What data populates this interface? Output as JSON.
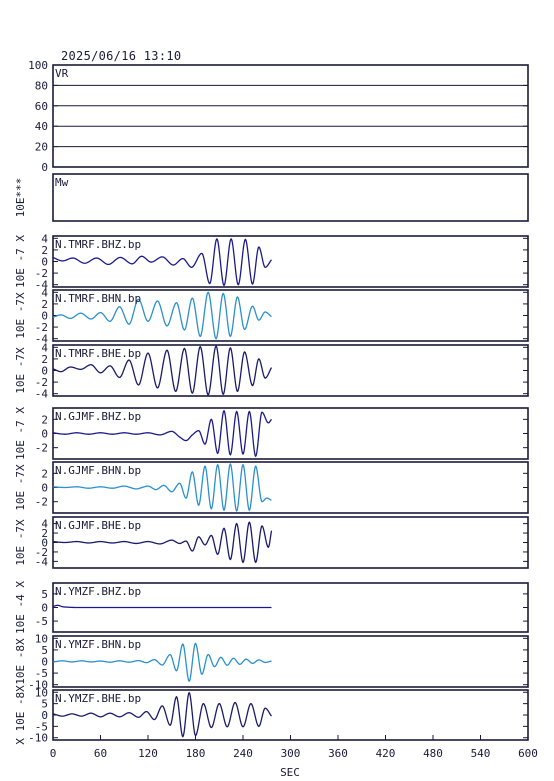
{
  "header": {
    "timestamp": "2025/06/16  13:10"
  },
  "chart_data": {
    "type": "line",
    "xlabel": "SEC",
    "xlim": [
      0,
      600
    ],
    "xticks": [
      0,
      60,
      120,
      180,
      240,
      300,
      360,
      420,
      480,
      540,
      600
    ],
    "panels": [
      {
        "id": "vr",
        "kind": "frame",
        "label": "VR",
        "ylim": [
          0,
          100
        ],
        "yticks": [
          0,
          20,
          40,
          60,
          80,
          100
        ],
        "grid": true,
        "ylabel": ""
      },
      {
        "id": "mw",
        "kind": "frame",
        "label": "Mw",
        "ylabel": "10E***",
        "yticks": []
      },
      {
        "id": "tmrf-bhz",
        "kind": "wave",
        "label": "N.TMRF.BHZ.bp",
        "ylabel": "10E -7 X",
        "ylim": [
          -4.4,
          4.4
        ],
        "yticks": [
          -4,
          -2,
          0,
          2,
          4
        ],
        "color": "#1a1a8c",
        "xend": 276,
        "nodes": [
          [
            0,
            0.7
          ],
          [
            12,
            0.1
          ],
          [
            25,
            0.6
          ],
          [
            40,
            -0.3
          ],
          [
            55,
            0.6
          ],
          [
            70,
            -0.5
          ],
          [
            85,
            0.7
          ],
          [
            100,
            -0.4
          ],
          [
            112,
            0.9
          ],
          [
            124,
            -0.1
          ],
          [
            138,
            0.8
          ],
          [
            152,
            -0.6
          ],
          [
            164,
            0.5
          ],
          [
            175,
            -1.0
          ],
          [
            188,
            1.4
          ],
          [
            198,
            -3.8
          ],
          [
            207,
            3.9
          ],
          [
            216,
            -4.1
          ],
          [
            225,
            3.9
          ],
          [
            234,
            -4.0
          ],
          [
            243,
            3.8
          ],
          [
            252,
            -3.9
          ],
          [
            260,
            2.5
          ],
          [
            268,
            -1.0
          ],
          [
            276,
            0.3
          ]
        ]
      },
      {
        "id": "tmrf-bhn",
        "kind": "wave",
        "label": "N.TMRF.BHN.bp",
        "ylabel": "10E -7X",
        "ylim": [
          -4.4,
          4.4
        ],
        "yticks": [
          -4,
          -2,
          0,
          2,
          4
        ],
        "color": "#2a90d0",
        "xend": 276,
        "nodes": [
          [
            0,
            -0.3
          ],
          [
            10,
            0.1
          ],
          [
            22,
            -0.5
          ],
          [
            35,
            0.4
          ],
          [
            48,
            -0.6
          ],
          [
            60,
            0.5
          ],
          [
            72,
            -1.0
          ],
          [
            84,
            1.5
          ],
          [
            96,
            -1.5
          ],
          [
            108,
            2.8
          ],
          [
            120,
            -1.0
          ],
          [
            132,
            2.5
          ],
          [
            144,
            -1.8
          ],
          [
            156,
            2.2
          ],
          [
            166,
            -2.5
          ],
          [
            176,
            3.0
          ],
          [
            186,
            -3.6
          ],
          [
            196,
            4.0
          ],
          [
            206,
            -4.0
          ],
          [
            215,
            3.8
          ],
          [
            224,
            -3.6
          ],
          [
            233,
            3.2
          ],
          [
            242,
            -2.4
          ],
          [
            252,
            1.6
          ],
          [
            260,
            -0.8
          ],
          [
            268,
            0.6
          ],
          [
            276,
            -0.2
          ]
        ]
      },
      {
        "id": "tmrf-bhe",
        "kind": "wave",
        "label": "N.TMRF.BHE.bp",
        "ylabel": "10E -7X",
        "ylim": [
          -4.4,
          4.4
        ],
        "yticks": [
          -4,
          -2,
          0,
          2,
          4
        ],
        "color": "#1a1a6c",
        "xend": 276,
        "nodes": [
          [
            0,
            0.3
          ],
          [
            10,
            -0.2
          ],
          [
            22,
            0.6
          ],
          [
            35,
            0.2
          ],
          [
            48,
            1.0
          ],
          [
            60,
            -0.4
          ],
          [
            72,
            0.8
          ],
          [
            84,
            -1.2
          ],
          [
            96,
            1.8
          ],
          [
            108,
            -2.5
          ],
          [
            120,
            3.0
          ],
          [
            132,
            -3.0
          ],
          [
            144,
            3.5
          ],
          [
            155,
            -3.6
          ],
          [
            166,
            3.8
          ],
          [
            176,
            -3.9
          ],
          [
            186,
            4.1
          ],
          [
            196,
            -4.2
          ],
          [
            206,
            4.2
          ],
          [
            215,
            -4.1
          ],
          [
            224,
            3.9
          ],
          [
            233,
            -3.6
          ],
          [
            242,
            3.2
          ],
          [
            252,
            -2.6
          ],
          [
            260,
            2.0
          ],
          [
            268,
            -1.3
          ],
          [
            276,
            0.5
          ]
        ]
      },
      {
        "id": "gjmf-bhz",
        "kind": "wave",
        "label": "N.GJMF.BHZ.bp",
        "ylabel": "10E -7 X",
        "ylim": [
          -3.6,
          3.6
        ],
        "yticks": [
          -2,
          0,
          2
        ],
        "color": "#1a1a8c",
        "xend": 276,
        "nodes": [
          [
            0,
            0.1
          ],
          [
            15,
            -0.1
          ],
          [
            30,
            0.1
          ],
          [
            45,
            -0.1
          ],
          [
            60,
            0.1
          ],
          [
            75,
            -0.1
          ],
          [
            90,
            0.1
          ],
          [
            105,
            -0.1
          ],
          [
            120,
            0.1
          ],
          [
            135,
            -0.2
          ],
          [
            150,
            0.3
          ],
          [
            160,
            -0.5
          ],
          [
            168,
            -1.0
          ],
          [
            176,
            -0.2
          ],
          [
            184,
            0.4
          ],
          [
            192,
            -1.5
          ],
          [
            200,
            2.0
          ],
          [
            208,
            -2.8
          ],
          [
            216,
            3.2
          ],
          [
            224,
            -3.0
          ],
          [
            232,
            3.1
          ],
          [
            240,
            -2.9
          ],
          [
            248,
            3.1
          ],
          [
            256,
            -3.2
          ],
          [
            264,
            3.0
          ],
          [
            272,
            1.5
          ],
          [
            276,
            2.0
          ]
        ]
      },
      {
        "id": "gjmf-bhn",
        "kind": "wave",
        "label": "N.GJMF.BHN.bp",
        "ylabel": "10E -7X",
        "ylim": [
          -3.6,
          3.6
        ],
        "yticks": [
          -2,
          0,
          2
        ],
        "color": "#2a90d0",
        "xend": 276,
        "nodes": [
          [
            0,
            0.1
          ],
          [
            15,
            0.0
          ],
          [
            30,
            0.1
          ],
          [
            45,
            -0.1
          ],
          [
            60,
            0.1
          ],
          [
            75,
            -0.1
          ],
          [
            90,
            0.2
          ],
          [
            105,
            -0.2
          ],
          [
            120,
            0.2
          ],
          [
            130,
            -0.3
          ],
          [
            140,
            0.3
          ],
          [
            150,
            -0.6
          ],
          [
            160,
            0.6
          ],
          [
            168,
            -1.5
          ],
          [
            176,
            2.2
          ],
          [
            184,
            -2.5
          ],
          [
            192,
            3.0
          ],
          [
            200,
            -3.0
          ],
          [
            208,
            3.2
          ],
          [
            216,
            -3.2
          ],
          [
            224,
            3.3
          ],
          [
            232,
            -3.3
          ],
          [
            240,
            3.2
          ],
          [
            248,
            -3.2
          ],
          [
            256,
            3.0
          ],
          [
            264,
            -2.0
          ],
          [
            270,
            -1.5
          ],
          [
            276,
            -1.8
          ]
        ]
      },
      {
        "id": "gjmf-bhe",
        "kind": "wave",
        "label": "N.GJMF.BHE.bp",
        "ylabel": "10E -7X",
        "ylim": [
          -5.4,
          5.4
        ],
        "yticks": [
          -4,
          -2,
          0,
          2,
          4
        ],
        "color": "#1a1a6c",
        "xend": 276,
        "nodes": [
          [
            0,
            0.2
          ],
          [
            15,
            0.0
          ],
          [
            30,
            0.2
          ],
          [
            45,
            -0.1
          ],
          [
            60,
            0.2
          ],
          [
            75,
            -0.1
          ],
          [
            90,
            0.2
          ],
          [
            105,
            -0.2
          ],
          [
            120,
            0.2
          ],
          [
            135,
            -0.3
          ],
          [
            150,
            0.5
          ],
          [
            160,
            -0.2
          ],
          [
            168,
            0.3
          ],
          [
            176,
            -1.8
          ],
          [
            184,
            1.2
          ],
          [
            192,
            -0.5
          ],
          [
            200,
            1.5
          ],
          [
            208,
            -2.5
          ],
          [
            216,
            3.0
          ],
          [
            224,
            -3.6
          ],
          [
            232,
            4.0
          ],
          [
            240,
            -4.2
          ],
          [
            248,
            4.3
          ],
          [
            256,
            -4.2
          ],
          [
            264,
            3.5
          ],
          [
            272,
            -1.0
          ],
          [
            276,
            2.5
          ]
        ]
      },
      {
        "id": "ymzf-bhz",
        "kind": "wave",
        "label": "N.YMZF.BHZ.bp",
        "ylabel": "10E -4 X",
        "ylim": [
          -9,
          9
        ],
        "yticks": [
          -5,
          0,
          5
        ],
        "color": "#1a1a8c",
        "xend": 276,
        "nodes": [
          [
            0,
            0.4
          ],
          [
            6,
            0.8
          ],
          [
            12,
            0.3
          ],
          [
            20,
            0.1
          ],
          [
            30,
            0.0
          ],
          [
            40,
            0.0
          ],
          [
            60,
            0.0
          ],
          [
            276,
            0.0
          ]
        ]
      },
      {
        "id": "ymzf-bhn",
        "kind": "wave",
        "label": "N.YMZF.BHN.bp",
        "ylabel": "10E -8X",
        "ylim": [
          -11,
          11
        ],
        "yticks": [
          -10,
          -5,
          0,
          5,
          10
        ],
        "color": "#2a90d0",
        "xend": 276,
        "nodes": [
          [
            0,
            -0.2
          ],
          [
            12,
            0.3
          ],
          [
            24,
            -0.2
          ],
          [
            36,
            0.3
          ],
          [
            48,
            -0.2
          ],
          [
            60,
            0.2
          ],
          [
            72,
            -0.3
          ],
          [
            84,
            0.3
          ],
          [
            96,
            -0.3
          ],
          [
            108,
            0.4
          ],
          [
            118,
            -0.5
          ],
          [
            128,
            0.8
          ],
          [
            138,
            -1.5
          ],
          [
            148,
            3.0
          ],
          [
            156,
            -4.0
          ],
          [
            164,
            7.5
          ],
          [
            172,
            -8.5
          ],
          [
            180,
            7.8
          ],
          [
            188,
            -5.5
          ],
          [
            196,
            3.0
          ],
          [
            204,
            -2.2
          ],
          [
            212,
            1.8
          ],
          [
            220,
            -1.6
          ],
          [
            228,
            1.4
          ],
          [
            236,
            -1.2
          ],
          [
            244,
            1.0
          ],
          [
            252,
            -0.8
          ],
          [
            260,
            0.7
          ],
          [
            268,
            -0.4
          ],
          [
            276,
            0.2
          ]
        ]
      },
      {
        "id": "ymzf-bhe",
        "kind": "wave",
        "label": "N.YMZF.BHE.bp",
        "ylabel": "X 10E -8X",
        "ylim": [
          -11,
          11
        ],
        "yticks": [
          -10,
          -5,
          0,
          5,
          10
        ],
        "color": "#1a1a6c",
        "xend": 276,
        "nodes": [
          [
            0,
            0.5
          ],
          [
            12,
            -0.5
          ],
          [
            24,
            0.5
          ],
          [
            36,
            -0.5
          ],
          [
            48,
            0.8
          ],
          [
            60,
            -0.8
          ],
          [
            72,
            0.8
          ],
          [
            84,
            -0.8
          ],
          [
            96,
            1.0
          ],
          [
            108,
            -1.0
          ],
          [
            118,
            1.5
          ],
          [
            128,
            -2.0
          ],
          [
            138,
            4.0
          ],
          [
            148,
            -4.5
          ],
          [
            156,
            8.0
          ],
          [
            164,
            -9.5
          ],
          [
            172,
            9.8
          ],
          [
            180,
            -9.0
          ],
          [
            190,
            5.0
          ],
          [
            200,
            -5.5
          ],
          [
            210,
            5.0
          ],
          [
            220,
            -5.2
          ],
          [
            230,
            5.5
          ],
          [
            240,
            -5.2
          ],
          [
            250,
            5.0
          ],
          [
            260,
            -5.0
          ],
          [
            268,
            3.0
          ],
          [
            276,
            -0.5
          ]
        ]
      }
    ]
  }
}
